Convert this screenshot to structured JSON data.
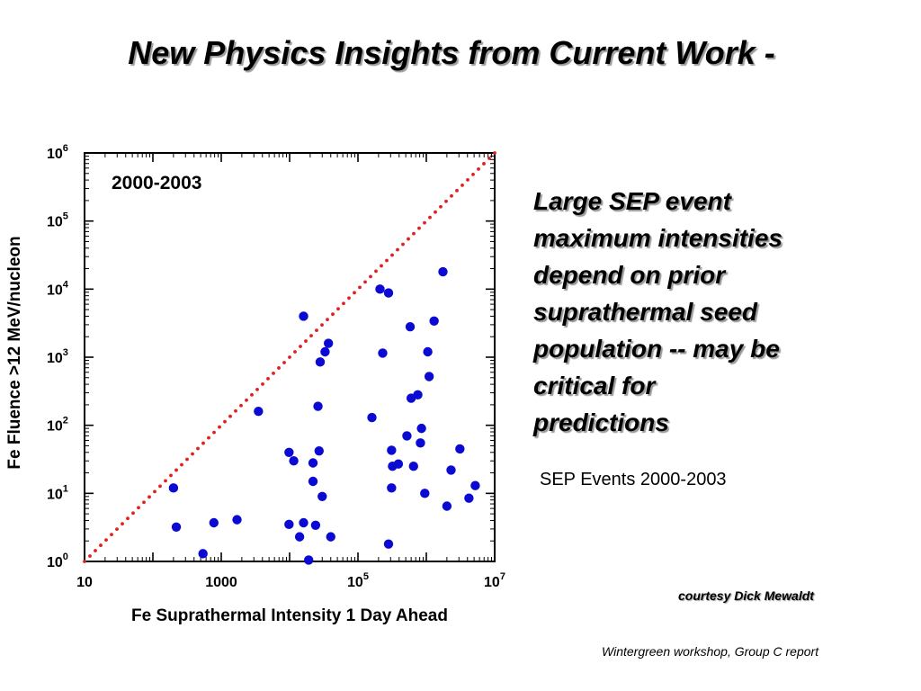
{
  "slide": {
    "title": "New Physics Insights from Current Work -",
    "bullet_lines": [
      "Large SEP event",
      "maximum intensities",
      "depend on prior",
      "suprathermal seed",
      "population -- may be",
      "critical for",
      "predictions"
    ],
    "subtitle": "SEP Events 2000-2003",
    "credit": "courtesy Dick Mewaldt",
    "footer": "Wintergreen workshop, Group C report"
  },
  "chart_data": {
    "type": "scatter",
    "xlabel": "Fe Suprathermal Intensity 1 Day Ahead",
    "ylabel": "Fe Fluence >12 MeV/nucleon",
    "annotation": "2000-2003",
    "x_scale": "log",
    "y_scale": "log",
    "xlim": [
      10,
      10000000
    ],
    "ylim": [
      1,
      1000000
    ],
    "x_ticks": [
      {
        "value": 10,
        "base": "10",
        "exp": ""
      },
      {
        "value": 1000,
        "base": "1000",
        "exp": ""
      },
      {
        "value": 100000,
        "base": "10",
        "exp": "5"
      },
      {
        "value": 10000000,
        "base": "10",
        "exp": "7"
      }
    ],
    "y_ticks": [
      {
        "value": 1,
        "base": "10",
        "exp": "0"
      },
      {
        "value": 10,
        "base": "10",
        "exp": "1"
      },
      {
        "value": 100,
        "base": "10",
        "exp": "2"
      },
      {
        "value": 1000,
        "base": "10",
        "exp": "3"
      },
      {
        "value": 10000,
        "base": "10",
        "exp": "4"
      },
      {
        "value": 100000,
        "base": "10",
        "exp": "5"
      },
      {
        "value": 1000000,
        "base": "10",
        "exp": "6"
      }
    ],
    "grid": false,
    "reference_line": {
      "style": "dotted",
      "color": "#e02020",
      "from": [
        10,
        1
      ],
      "to": [
        10000000,
        1000000
      ]
    },
    "marker_color": "#0a0ad2",
    "points": [
      {
        "x": 200,
        "y": 12
      },
      {
        "x": 220,
        "y": 3.2
      },
      {
        "x": 540,
        "y": 1.3
      },
      {
        "x": 780,
        "y": 3.7
      },
      {
        "x": 1700,
        "y": 4.1
      },
      {
        "x": 3500,
        "y": 160
      },
      {
        "x": 9800,
        "y": 40
      },
      {
        "x": 9800,
        "y": 3.5
      },
      {
        "x": 11500,
        "y": 30
      },
      {
        "x": 14000,
        "y": 2.3
      },
      {
        "x": 16000,
        "y": 3.7
      },
      {
        "x": 16000,
        "y": 4000
      },
      {
        "x": 22000,
        "y": 28
      },
      {
        "x": 22000,
        "y": 15
      },
      {
        "x": 24000,
        "y": 3.4
      },
      {
        "x": 26000,
        "y": 190
      },
      {
        "x": 27000,
        "y": 42
      },
      {
        "x": 28000,
        "y": 850
      },
      {
        "x": 30000,
        "y": 9
      },
      {
        "x": 33000,
        "y": 1200
      },
      {
        "x": 37000,
        "y": 1600
      },
      {
        "x": 40000,
        "y": 2.3
      },
      {
        "x": 19000,
        "y": 1.05
      },
      {
        "x": 160000,
        "y": 130
      },
      {
        "x": 210000,
        "y": 10000
      },
      {
        "x": 230000,
        "y": 1150
      },
      {
        "x": 280000,
        "y": 8800
      },
      {
        "x": 280000,
        "y": 1.8
      },
      {
        "x": 310000,
        "y": 43
      },
      {
        "x": 310000,
        "y": 12
      },
      {
        "x": 320000,
        "y": 25
      },
      {
        "x": 390000,
        "y": 27
      },
      {
        "x": 520000,
        "y": 70
      },
      {
        "x": 580000,
        "y": 2800
      },
      {
        "x": 600000,
        "y": 250
      },
      {
        "x": 650000,
        "y": 25
      },
      {
        "x": 750000,
        "y": 280
      },
      {
        "x": 820000,
        "y": 55
      },
      {
        "x": 850000,
        "y": 90
      },
      {
        "x": 950000,
        "y": 10
      },
      {
        "x": 1050000,
        "y": 1200
      },
      {
        "x": 1100000,
        "y": 520
      },
      {
        "x": 1300000,
        "y": 3400
      },
      {
        "x": 1750000,
        "y": 18000
      },
      {
        "x": 2000000,
        "y": 6.5
      },
      {
        "x": 2300000,
        "y": 22
      },
      {
        "x": 3100000,
        "y": 45
      },
      {
        "x": 4200000,
        "y": 8.5
      },
      {
        "x": 5200000,
        "y": 13
      }
    ]
  }
}
